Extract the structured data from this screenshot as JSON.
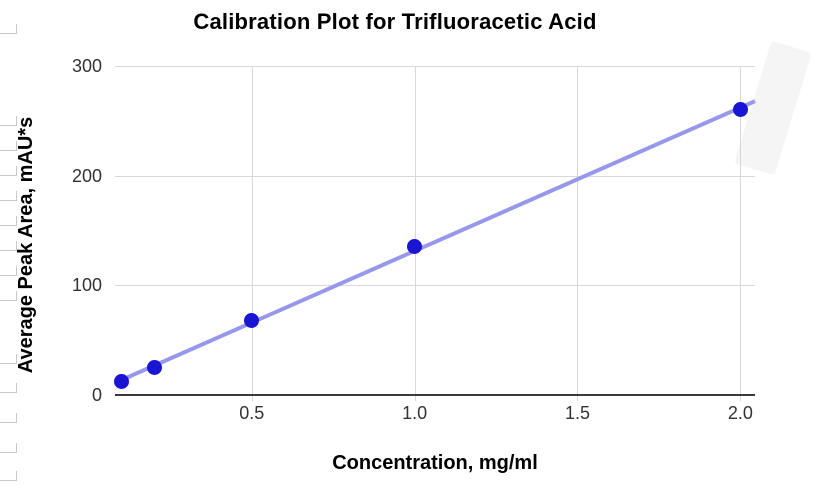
{
  "colors": {
    "point": "#1a15d2",
    "trendline": "#9798ec",
    "gridline": "#d8d8d8",
    "axis_line": "#3a3a3a",
    "tick_text": "#333333",
    "title_text": "#000000"
  },
  "chart_data": {
    "type": "scatter",
    "title": "Calibration Plot for Trifluoracetic Acid",
    "xlabel": "Concentration, mg/ml",
    "ylabel": "Average Peak Area, mAU*s",
    "x": [
      0.1,
      0.2,
      0.5,
      1.0,
      2.0
    ],
    "y": [
      12,
      25,
      68,
      135,
      260
    ],
    "x_ticks": [
      0.5,
      1.0,
      1.5,
      2.0
    ],
    "x_tick_labels": [
      "0.5",
      "1.0",
      "1.5",
      "2.0"
    ],
    "y_ticks": [
      0,
      100,
      200,
      300
    ],
    "y_tick_labels": [
      "0",
      "100",
      "200",
      "300"
    ],
    "xlim": [
      0.08,
      2.045
    ],
    "ylim": [
      0,
      300
    ],
    "grid": true,
    "legend": "none",
    "trendline": "linear"
  }
}
